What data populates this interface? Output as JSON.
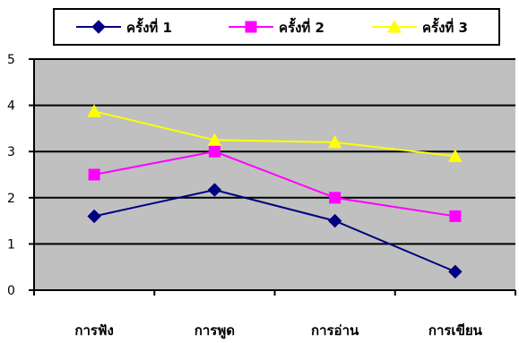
{
  "chart_data": {
    "type": "line",
    "categories": [
      "การฟัง",
      "การพูด",
      "การอ่าน",
      "การเขียน"
    ],
    "series": [
      {
        "name": "ครั้งที่ 1",
        "values": [
          1.6,
          2.17,
          1.5,
          0.4
        ],
        "color": "#000080",
        "marker": "diamond"
      },
      {
        "name": "ครั้งที่ 2",
        "values": [
          2.5,
          3.0,
          2.0,
          1.6
        ],
        "color": "#ff00ff",
        "marker": "square"
      },
      {
        "name": "ครั้งที่ 3",
        "values": [
          3.87,
          3.25,
          3.2,
          2.9
        ],
        "color": "#ffff00",
        "marker": "triangle"
      }
    ],
    "ylim": [
      0,
      5
    ],
    "yticks": [
      "0",
      "1",
      "2",
      "3",
      "4",
      "5"
    ],
    "grid": true,
    "legend_position": "top",
    "plot_background": "#c0c0c0"
  }
}
